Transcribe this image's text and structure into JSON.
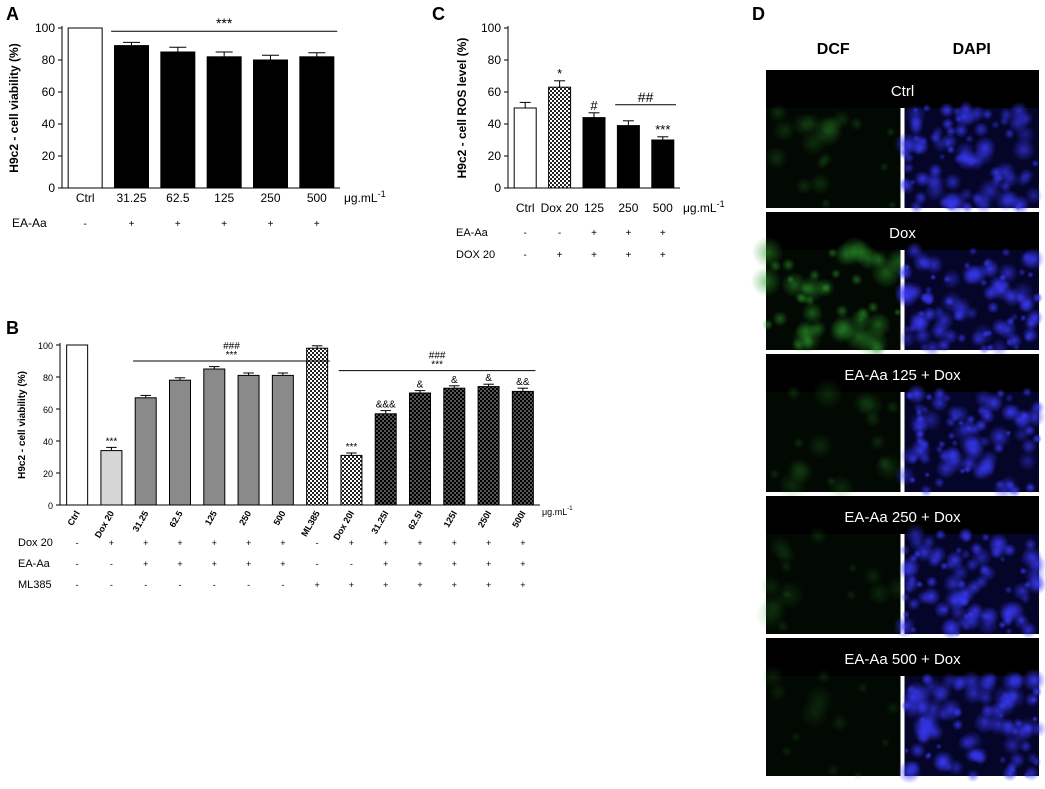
{
  "panels": {
    "A": {
      "letter": "A"
    },
    "B": {
      "letter": "B"
    },
    "C": {
      "letter": "C"
    },
    "D": {
      "letter": "D"
    }
  },
  "chart_data": [
    {
      "panel": "A",
      "type": "bar",
      "ylabel": "H9c2 - cell viability (%)",
      "unit": "μg.mL",
      "unit_exp": "-1",
      "ylim": [
        0,
        100
      ],
      "yticks": [
        0,
        20,
        40,
        60,
        80,
        100
      ],
      "categories": [
        "Ctrl",
        "31.25",
        "62.5",
        "125",
        "250",
        "500"
      ],
      "values": [
        100,
        89,
        85,
        82,
        80,
        82
      ],
      "errors": [
        0,
        2,
        3,
        3,
        3,
        2.5
      ],
      "fills": [
        "white",
        "black",
        "black",
        "black",
        "black",
        "black"
      ],
      "bar_labels": [
        "",
        "",
        "",
        "",
        "",
        ""
      ],
      "groups": [
        {
          "from": 1,
          "to": 5,
          "level": 98,
          "labels": [
            "***"
          ]
        }
      ],
      "conditions": [
        {
          "name": "EA-Aa",
          "signs": [
            "-",
            "+",
            "+",
            "+",
            "+",
            "+"
          ]
        }
      ]
    },
    {
      "panel": "B",
      "type": "bar",
      "ylabel": "H9c2 - cell viability (%)",
      "unit": "μg.mL",
      "unit_exp": "-1",
      "ylim": [
        0,
        100
      ],
      "yticks": [
        0,
        20,
        40,
        60,
        80,
        100
      ],
      "categories": [
        "Ctrl",
        "Dox 20",
        "31.25",
        "62.5",
        "125",
        "250",
        "500",
        "ML385",
        "Dox 20I",
        "31.25I",
        "62.5I",
        "125I",
        "250I",
        "500I"
      ],
      "values": [
        100,
        34,
        67,
        78,
        85,
        81,
        81,
        98,
        31,
        57,
        70,
        73,
        74,
        71
      ],
      "errors": [
        0,
        2,
        1.5,
        1.5,
        1.5,
        1.5,
        1.5,
        1.5,
        1.5,
        2,
        1.5,
        1.5,
        1.5,
        2
      ],
      "fills": [
        "white",
        "lightgray",
        "gray",
        "gray",
        "gray",
        "gray",
        "gray",
        "check",
        "check",
        "darkcheck",
        "darkcheck",
        "darkcheck",
        "darkcheck",
        "darkcheck"
      ],
      "bar_labels": [
        "",
        "***",
        "",
        "",
        "",
        "",
        "",
        "",
        "***",
        "&&&",
        "&",
        "&",
        "&",
        "&&"
      ],
      "groups": [
        {
          "from": 2,
          "to": 7,
          "level": 90,
          "labels": [
            "###",
            "***"
          ]
        },
        {
          "from": 8,
          "to": 13,
          "level": 84,
          "labels": [
            "###",
            "***"
          ]
        }
      ],
      "conditions": [
        {
          "name": "Dox 20",
          "signs": [
            "-",
            "+",
            "+",
            "+",
            "+",
            "+",
            "+",
            "-",
            "+",
            "+",
            "+",
            "+",
            "+",
            "+"
          ]
        },
        {
          "name": "EA-Aa",
          "signs": [
            "-",
            "-",
            "+",
            "+",
            "+",
            "+",
            "+",
            "-",
            "-",
            "+",
            "+",
            "+",
            "+",
            "+"
          ]
        },
        {
          "name": "ML385",
          "signs": [
            "-",
            "-",
            "-",
            "-",
            "-",
            "-",
            "-",
            "+",
            "+",
            "+",
            "+",
            "+",
            "+",
            "+"
          ]
        }
      ]
    },
    {
      "panel": "C",
      "type": "bar",
      "ylabel": "H9c2 - cell ROS level (%)",
      "unit": "μg.mL",
      "unit_exp": "-1",
      "ylim": [
        0,
        100
      ],
      "yticks": [
        0,
        20,
        40,
        60,
        80,
        100
      ],
      "categories": [
        "Ctrl",
        "Dox 20",
        "125",
        "250",
        "500"
      ],
      "values": [
        50,
        63,
        44,
        39,
        30
      ],
      "errors": [
        3.5,
        4,
        3,
        3,
        2
      ],
      "fills": [
        "white",
        "check",
        "black",
        "black",
        "black"
      ],
      "bar_labels": [
        "",
        "*",
        "#",
        "",
        "***"
      ],
      "groups": [
        {
          "from": 3,
          "to": 4,
          "level": 52,
          "labels": [
            "##"
          ]
        }
      ],
      "conditions": [
        {
          "name": "EA-Aa",
          "signs": [
            "-",
            "-",
            "+",
            "+",
            "+"
          ]
        },
        {
          "name": "DOX 20",
          "signs": [
            "-",
            "+",
            "+",
            "+",
            "+"
          ]
        }
      ]
    }
  ],
  "micrographs": {
    "col_labels": [
      "DCF",
      "DAPI"
    ],
    "rows": [
      {
        "label": "Ctrl",
        "dcf_signal": 0.15
      },
      {
        "label": "Dox",
        "dcf_signal": 0.55
      },
      {
        "label": "EA-Aa 125 + Dox",
        "dcf_signal": 0.12
      },
      {
        "label": "EA-Aa 250 + Dox",
        "dcf_signal": 0.08
      },
      {
        "label": "EA-Aa 500 + Dox",
        "dcf_signal": 0.05
      }
    ],
    "colors": {
      "dcf": "#1e7a1e",
      "dapi": "#2a2aff",
      "header": "#000000"
    }
  }
}
